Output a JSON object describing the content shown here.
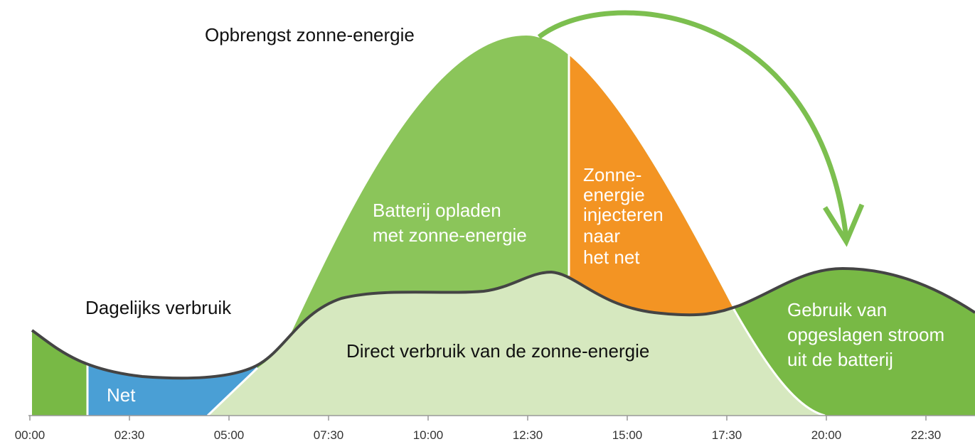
{
  "title": "Opbrengst zonne-energie",
  "consumption_label": "Dagelijks verbruik",
  "regions": {
    "battery_charge": [
      "Batterij opladen",
      "met zonne-energie"
    ],
    "grid_injection": [
      "Zonne-",
      "energie",
      "injecteren",
      "naar",
      "het net"
    ],
    "direct_use": "Direct verbruik van de zonne-energie",
    "grid": "Net",
    "battery_use": [
      "Gebruik van",
      "opgeslagen stroom",
      "uit de batterij"
    ]
  },
  "axis": {
    "ticks": [
      "00:00",
      "02:30",
      "05:00",
      "07:30",
      "10:00",
      "12:30",
      "15:00",
      "17:30",
      "20:00",
      "22:30"
    ]
  }
}
